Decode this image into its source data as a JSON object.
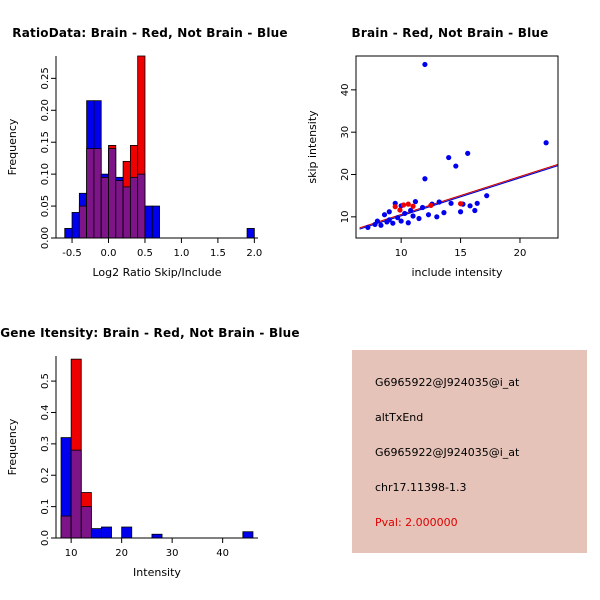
{
  "page": {
    "background": "#ffffff",
    "accent_blue": "#0000ee",
    "accent_red": "#ee0000",
    "overlap_purple": "#7d1589"
  },
  "chart_data": [
    {
      "type": "histogram",
      "title": "RatioData: Brain - Red, Not Brain - Blue",
      "xlabel": "Log2 Ratio Skip/Include",
      "ylabel": "Frequency",
      "bin_width": 0.1,
      "xlim": [
        -0.72,
        2.05
      ],
      "ylim": [
        0,
        0.285
      ],
      "xticks": [
        -0.5,
        0,
        0.5,
        1,
        1.5,
        2
      ],
      "xtick_labels": [
        "-0.5",
        "0.0",
        "0.5",
        "1.0",
        "1.5",
        "2.0"
      ],
      "yticks": [
        0,
        0.05,
        0.1,
        0.15,
        0.2,
        0.25
      ],
      "ytick_labels": [
        "0.00",
        "0.05",
        "0.10",
        "0.15",
        "0.20",
        "0.25"
      ],
      "grid": false,
      "overlap_color": "#7d1589",
      "series": [
        {
          "name": "Not Brain (Blue)",
          "color": "#0000ee",
          "bins": [
            {
              "x": -0.6,
              "h": 0.015
            },
            {
              "x": -0.5,
              "h": 0.04
            },
            {
              "x": -0.4,
              "h": 0.07
            },
            {
              "x": -0.3,
              "h": 0.215
            },
            {
              "x": -0.2,
              "h": 0.215
            },
            {
              "x": -0.1,
              "h": 0.1
            },
            {
              "x": 0.0,
              "h": 0.14
            },
            {
              "x": 0.1,
              "h": 0.095
            },
            {
              "x": 0.2,
              "h": 0.08
            },
            {
              "x": 0.3,
              "h": 0.095
            },
            {
              "x": 0.4,
              "h": 0.1
            },
            {
              "x": 0.5,
              "h": 0.05
            },
            {
              "x": 0.6,
              "h": 0.05
            },
            {
              "x": 1.9,
              "h": 0.015
            }
          ]
        },
        {
          "name": "Brain (Red)",
          "color": "#ee0000",
          "bins": [
            {
              "x": -0.4,
              "h": 0.05
            },
            {
              "x": -0.3,
              "h": 0.14
            },
            {
              "x": -0.2,
              "h": 0.14
            },
            {
              "x": -0.1,
              "h": 0.095
            },
            {
              "x": 0.0,
              "h": 0.145
            },
            {
              "x": 0.1,
              "h": 0.09
            },
            {
              "x": 0.2,
              "h": 0.12
            },
            {
              "x": 0.3,
              "h": 0.145
            },
            {
              "x": 0.4,
              "h": 0.285
            }
          ]
        }
      ]
    },
    {
      "type": "scatter",
      "title": "Brain - Red, Not Brain - Blue",
      "xlabel": "include intensity",
      "ylabel": "skip intensity",
      "xlim": [
        6.2,
        23.2
      ],
      "ylim": [
        5,
        48
      ],
      "xticks": [
        10,
        15,
        20
      ],
      "xtick_labels": [
        "10",
        "15",
        "20"
      ],
      "yticks": [
        10,
        20,
        30,
        40
      ],
      "ytick_labels": [
        "10",
        "20",
        "30",
        "40"
      ],
      "grid": false,
      "fit_lines": [
        {
          "color": "#0000cd",
          "from": [
            6.5,
            7.1
          ],
          "to": [
            23.2,
            22.1
          ]
        },
        {
          "color": "#cd0000",
          "from": [
            6.5,
            7.4
          ],
          "to": [
            23.2,
            22.4
          ]
        }
      ],
      "series": [
        {
          "name": "Not Brain (Blue)",
          "color": "#0000ee",
          "points": [
            [
              7.2,
              7.5
            ],
            [
              7.8,
              8.2
            ],
            [
              8.0,
              9.0
            ],
            [
              8.3,
              8.0
            ],
            [
              8.6,
              10.5
            ],
            [
              8.8,
              8.8
            ],
            [
              9.0,
              9.3
            ],
            [
              9.0,
              11.2
            ],
            [
              9.3,
              8.5
            ],
            [
              9.5,
              13.2
            ],
            [
              9.7,
              9.8
            ],
            [
              10.0,
              9.0
            ],
            [
              10.0,
              12.6
            ],
            [
              10.3,
              10.8
            ],
            [
              10.6,
              8.6
            ],
            [
              10.8,
              11.5
            ],
            [
              11.0,
              10.2
            ],
            [
              11.2,
              13.6
            ],
            [
              11.5,
              9.6
            ],
            [
              11.8,
              12.2
            ],
            [
              12.0,
              46.0
            ],
            [
              12.0,
              19.0
            ],
            [
              12.3,
              10.5
            ],
            [
              12.6,
              13.0
            ],
            [
              13.0,
              10.0
            ],
            [
              13.2,
              13.5
            ],
            [
              13.6,
              11.0
            ],
            [
              14.0,
              24.0
            ],
            [
              14.2,
              13.2
            ],
            [
              14.6,
              22.0
            ],
            [
              15.0,
              11.2
            ],
            [
              15.2,
              13.0
            ],
            [
              15.6,
              25.0
            ],
            [
              15.8,
              12.6
            ],
            [
              16.2,
              11.5
            ],
            [
              16.4,
              13.2
            ],
            [
              17.2,
              15.0
            ],
            [
              22.2,
              27.5
            ]
          ]
        },
        {
          "name": "Brain (Red)",
          "color": "#ee0000",
          "points": [
            [
              9.5,
              12.4
            ],
            [
              9.9,
              11.6
            ],
            [
              10.2,
              12.8
            ],
            [
              10.6,
              13.0
            ],
            [
              11.0,
              12.5
            ],
            [
              12.5,
              12.7
            ],
            [
              15.0,
              13.1
            ]
          ]
        }
      ]
    },
    {
      "type": "histogram",
      "title": "Gene Itensity: Brain - Red, Not Brain - Blue",
      "xlabel": "Intensity",
      "ylabel": "Frequency",
      "bin_width": 2,
      "xlim": [
        7,
        47
      ],
      "ylim": [
        0,
        0.58
      ],
      "xticks": [
        10,
        20,
        30,
        40
      ],
      "xtick_labels": [
        "10",
        "20",
        "30",
        "40"
      ],
      "yticks": [
        0,
        0.1,
        0.2,
        0.3,
        0.4,
        0.5
      ],
      "ytick_labels": [
        "0.0",
        "0.1",
        "0.2",
        "0.3",
        "0.4",
        "0.5"
      ],
      "grid": false,
      "overlap_color": "#7d1589",
      "series": [
        {
          "name": "Not Brain (Blue)",
          "color": "#0000ee",
          "bins": [
            {
              "x": 8,
              "h": 0.32
            },
            {
              "x": 10,
              "h": 0.28
            },
            {
              "x": 12,
              "h": 0.1
            },
            {
              "x": 14,
              "h": 0.03
            },
            {
              "x": 16,
              "h": 0.035
            },
            {
              "x": 20,
              "h": 0.035
            },
            {
              "x": 26,
              "h": 0.012
            },
            {
              "x": 44,
              "h": 0.02
            }
          ]
        },
        {
          "name": "Brain (Red)",
          "color": "#ee0000",
          "bins": [
            {
              "x": 8,
              "h": 0.07
            },
            {
              "x": 10,
              "h": 0.57
            },
            {
              "x": 12,
              "h": 0.145
            }
          ]
        }
      ]
    }
  ],
  "info_panel": {
    "background": "#e6c3b8",
    "lines": [
      {
        "text": "G6965922@J924035@i_at",
        "color": "#000000"
      },
      {
        "text": "altTxEnd",
        "color": "#000000"
      },
      {
        "text": "G6965922@J924035@i_at",
        "color": "#000000"
      },
      {
        "text": "chr17.11398-1.3",
        "color": "#000000"
      },
      {
        "text": "Pval: 2.000000",
        "color": "#dd0000"
      }
    ]
  }
}
